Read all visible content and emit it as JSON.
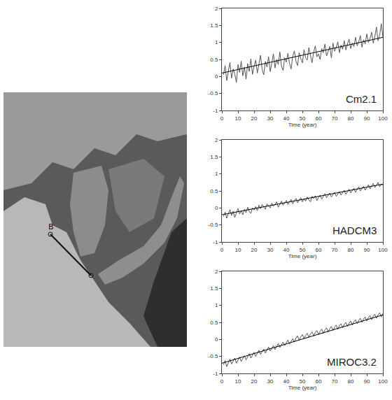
{
  "map": {
    "marker_label": "B"
  },
  "chart_data": [
    {
      "type": "line",
      "label": "Cm2.1",
      "xlabel": "Time (year)",
      "color": "#555555",
      "x": [
        1,
        2,
        3,
        4,
        5,
        6,
        7,
        8,
        9,
        10,
        11,
        12,
        13,
        14,
        15,
        16,
        17,
        18,
        19,
        20,
        21,
        22,
        23,
        24,
        25,
        26,
        27,
        28,
        29,
        30,
        31,
        32,
        33,
        34,
        35,
        36,
        37,
        38,
        39,
        40,
        41,
        42,
        43,
        44,
        45,
        46,
        47,
        48,
        49,
        50,
        51,
        52,
        53,
        54,
        55,
        56,
        57,
        58,
        59,
        60,
        61,
        62,
        63,
        64,
        65,
        66,
        67,
        68,
        69,
        70,
        71,
        72,
        73,
        74,
        75,
        76,
        77,
        78,
        79,
        80,
        81,
        82,
        83,
        84,
        85,
        86,
        87,
        88,
        89,
        90,
        91,
        92,
        93,
        94,
        95,
        96,
        97,
        98,
        99,
        100
      ],
      "values": [
        0.05,
        0.32,
        -0.12,
        0.18,
        0.41,
        -0.05,
        0.22,
        0.08,
        -0.18,
        0.35,
        0.12,
        0.45,
        0.02,
        0.28,
        -0.08,
        0.38,
        0.15,
        0.52,
        0.06,
        0.3,
        0.48,
        0.1,
        0.36,
        0.62,
        0.2,
        0.05,
        0.44,
        0.28,
        0.58,
        0.14,
        0.4,
        0.66,
        0.25,
        0.5,
        0.35,
        0.72,
        0.3,
        0.18,
        0.55,
        0.42,
        0.68,
        0.38,
        0.22,
        0.6,
        0.75,
        0.45,
        0.32,
        0.7,
        0.52,
        0.4,
        0.78,
        0.55,
        0.48,
        0.85,
        0.62,
        0.4,
        0.72,
        0.9,
        0.58,
        0.66,
        0.5,
        0.82,
        0.7,
        0.95,
        0.6,
        0.76,
        0.88,
        0.55,
        0.98,
        0.74,
        0.85,
        1.02,
        0.7,
        0.92,
        0.8,
        1.05,
        0.78,
        0.95,
        1.1,
        0.82,
        0.98,
        0.88,
        1.15,
        0.9,
        1.02,
        1.2,
        0.86,
        1.08,
        0.95,
        1.25,
        1.0,
        1.12,
        1.3,
        0.98,
        1.18,
        1.45,
        1.05,
        1.22,
        1.55,
        1.15
      ],
      "trend": {
        "x": [
          0,
          100
        ],
        "values": [
          0.1,
          1.15
        ]
      },
      "xlim": [
        0,
        100
      ],
      "xticks": [
        0,
        10,
        20,
        30,
        40,
        50,
        60,
        70,
        80,
        90,
        100
      ],
      "ylim": [
        -1,
        2
      ],
      "yticks": [
        -1,
        -0.5,
        0,
        0.5,
        1,
        1.5,
        2
      ],
      "grid": false
    },
    {
      "type": "line",
      "label": "HADCM3",
      "xlabel": "Time (year)",
      "color": "#555555",
      "x": [
        1,
        2,
        3,
        4,
        5,
        6,
        7,
        8,
        9,
        10,
        11,
        12,
        13,
        14,
        15,
        16,
        17,
        18,
        19,
        20,
        21,
        22,
        23,
        24,
        25,
        26,
        27,
        28,
        29,
        30,
        31,
        32,
        33,
        34,
        35,
        36,
        37,
        38,
        39,
        40,
        41,
        42,
        43,
        44,
        45,
        46,
        47,
        48,
        49,
        50,
        51,
        52,
        53,
        54,
        55,
        56,
        57,
        58,
        59,
        60,
        61,
        62,
        63,
        64,
        65,
        66,
        67,
        68,
        69,
        70,
        71,
        72,
        73,
        74,
        75,
        76,
        77,
        78,
        79,
        80,
        81,
        82,
        83,
        84,
        85,
        86,
        87,
        88,
        89,
        90,
        91,
        92,
        93,
        94,
        95,
        96,
        97,
        98,
        99,
        100
      ],
      "values": [
        -0.25,
        -0.12,
        -0.3,
        -0.18,
        -0.05,
        -0.22,
        -0.1,
        -0.28,
        -0.15,
        -0.02,
        -0.18,
        -0.08,
        -0.2,
        -0.04,
        -0.14,
        0.02,
        -0.1,
        -0.16,
        0.0,
        -0.06,
        0.04,
        -0.08,
        0.08,
        -0.02,
        0.1,
        0.02,
        -0.04,
        0.12,
        0.06,
        0.0,
        0.14,
        0.05,
        0.1,
        0.18,
        0.02,
        0.12,
        0.2,
        0.08,
        0.15,
        0.22,
        0.1,
        0.18,
        0.25,
        0.12,
        0.2,
        0.28,
        0.15,
        0.22,
        0.3,
        0.18,
        0.26,
        0.2,
        0.32,
        0.24,
        0.18,
        0.34,
        0.28,
        0.36,
        0.22,
        0.3,
        0.38,
        0.26,
        0.34,
        0.42,
        0.3,
        0.36,
        0.44,
        0.32,
        0.4,
        0.46,
        0.34,
        0.42,
        0.48,
        0.38,
        0.45,
        0.52,
        0.4,
        0.48,
        0.55,
        0.44,
        0.5,
        0.58,
        0.46,
        0.54,
        0.62,
        0.5,
        0.56,
        0.64,
        0.52,
        0.6,
        0.68,
        0.56,
        0.64,
        0.72,
        0.6,
        0.66,
        0.75,
        0.62,
        0.7,
        0.66
      ],
      "trend": {
        "x": [
          0,
          100
        ],
        "values": [
          -0.2,
          0.7
        ]
      },
      "xlim": [
        0,
        100
      ],
      "xticks": [
        0,
        10,
        20,
        30,
        40,
        50,
        60,
        70,
        80,
        90,
        100
      ],
      "ylim": [
        -1,
        2
      ],
      "yticks": [
        -1,
        -0.5,
        0,
        0.5,
        1,
        1.5,
        2
      ],
      "grid": false
    },
    {
      "type": "line",
      "label": "MIROC3.2",
      "xlabel": "Time (year)",
      "color": "#555555",
      "x": [
        1,
        2,
        3,
        4,
        5,
        6,
        7,
        8,
        9,
        10,
        11,
        12,
        13,
        14,
        15,
        16,
        17,
        18,
        19,
        20,
        21,
        22,
        23,
        24,
        25,
        26,
        27,
        28,
        29,
        30,
        31,
        32,
        33,
        34,
        35,
        36,
        37,
        38,
        39,
        40,
        41,
        42,
        43,
        44,
        45,
        46,
        47,
        48,
        49,
        50,
        51,
        52,
        53,
        54,
        55,
        56,
        57,
        58,
        59,
        60,
        61,
        62,
        63,
        64,
        65,
        66,
        67,
        68,
        69,
        70,
        71,
        72,
        73,
        74,
        75,
        76,
        77,
        78,
        79,
        80,
        81,
        82,
        83,
        84,
        85,
        86,
        87,
        88,
        89,
        90,
        91,
        92,
        93,
        94,
        95,
        96,
        97,
        98,
        99,
        100
      ],
      "values": [
        -0.75,
        -0.62,
        -0.8,
        -0.68,
        -0.58,
        -0.72,
        -0.64,
        -0.55,
        -0.7,
        -0.6,
        -0.52,
        -0.65,
        -0.56,
        -0.48,
        -0.6,
        -0.5,
        -0.42,
        -0.55,
        -0.45,
        -0.38,
        -0.5,
        -0.4,
        -0.32,
        -0.44,
        -0.36,
        -0.28,
        -0.4,
        -0.3,
        -0.22,
        -0.34,
        -0.26,
        -0.18,
        -0.3,
        -0.2,
        -0.12,
        -0.24,
        -0.15,
        -0.08,
        -0.18,
        -0.1,
        -0.02,
        -0.14,
        -0.06,
        0.02,
        -0.08,
        0.04,
        0.1,
        -0.02,
        0.08,
        0.14,
        0.02,
        0.12,
        0.18,
        0.06,
        0.16,
        0.22,
        0.1,
        0.2,
        0.26,
        0.14,
        0.24,
        0.3,
        0.18,
        0.28,
        0.34,
        0.22,
        0.32,
        0.38,
        0.26,
        0.36,
        0.42,
        0.3,
        0.4,
        0.46,
        0.34,
        0.44,
        0.5,
        0.38,
        0.48,
        0.54,
        0.42,
        0.52,
        0.58,
        0.46,
        0.56,
        0.62,
        0.5,
        0.6,
        0.66,
        0.54,
        0.64,
        0.7,
        0.58,
        0.68,
        0.74,
        0.62,
        0.72,
        0.78,
        0.66,
        0.76
      ],
      "trend": {
        "x": [
          0,
          100
        ],
        "values": [
          -0.7,
          0.72
        ]
      },
      "xlim": [
        0,
        100
      ],
      "xticks": [
        0,
        10,
        20,
        30,
        40,
        50,
        60,
        70,
        80,
        90,
        100
      ],
      "ylim": [
        -1,
        2
      ],
      "yticks": [
        -1,
        -0.5,
        0,
        0.5,
        1,
        1.5,
        2
      ],
      "grid": false
    }
  ]
}
